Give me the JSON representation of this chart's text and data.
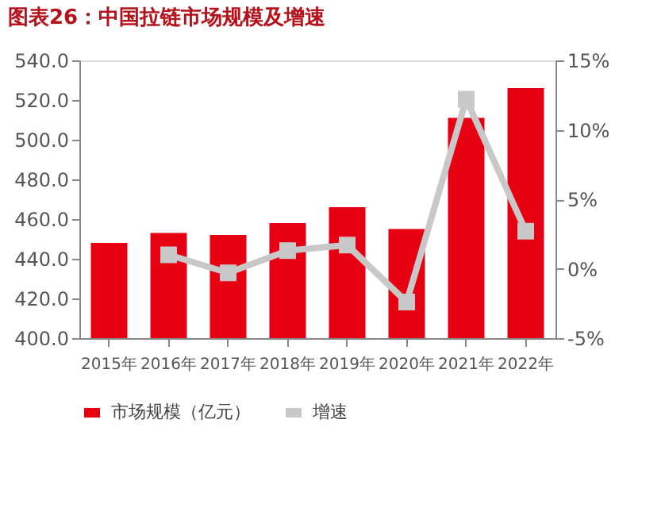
{
  "chart_data": {
    "type": "bar",
    "title": "图表26：中国拉链市场规模及增速",
    "categories": [
      "2015年",
      "2016年",
      "2017年",
      "2018年",
      "2019年",
      "2020年",
      "2021年",
      "2022年"
    ],
    "series": [
      {
        "name": "市场规模（亿元）",
        "color": "#e60012",
        "values": [
          448,
          453,
          452,
          458,
          466,
          455,
          511,
          526
        ]
      },
      {
        "name": "增速",
        "type": "line",
        "axis": "y2",
        "color": "#c8c8c8",
        "marker": "square",
        "values": [
          null,
          1.0,
          -0.3,
          1.3,
          1.7,
          -2.4,
          12.2,
          2.7
        ]
      }
    ],
    "ylim": [
      400,
      540
    ],
    "yticks": [
      {
        "value": 400,
        "label": "400.0"
      },
      {
        "value": 420,
        "label": "420.0"
      },
      {
        "value": 440,
        "label": "440.0"
      },
      {
        "value": 460,
        "label": "460.0"
      },
      {
        "value": 480,
        "label": "480.0"
      },
      {
        "value": 500,
        "label": "500.0"
      },
      {
        "value": 520,
        "label": "520.0"
      },
      {
        "value": 540,
        "label": "540.0"
      }
    ],
    "y2lim": [
      -5,
      15
    ],
    "y2ticks": [
      {
        "value": -5,
        "label": "-5%"
      },
      {
        "value": 0,
        "label": "0%"
      },
      {
        "value": 5,
        "label": "5%"
      },
      {
        "value": 10,
        "label": "10%"
      },
      {
        "value": 15,
        "label": "15%"
      }
    ],
    "legend": "bottom",
    "grid": false
  }
}
